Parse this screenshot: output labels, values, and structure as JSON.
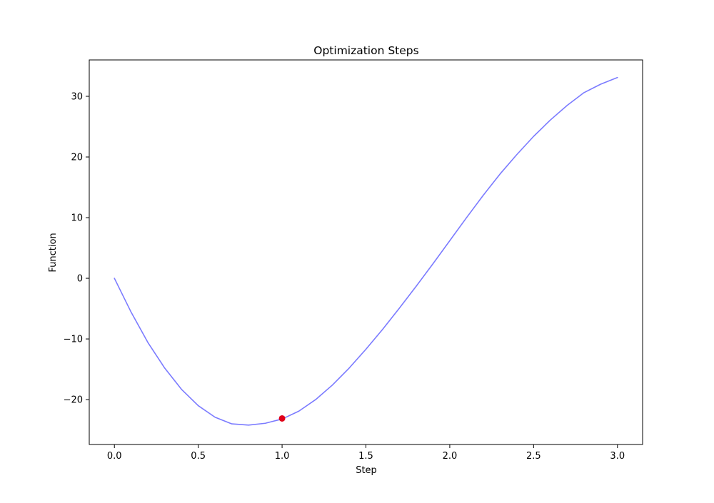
{
  "chart_data": {
    "type": "line",
    "title": "Optimization Steps",
    "xlabel": "Step",
    "ylabel": "Function",
    "xlim": [
      -0.15,
      3.15
    ],
    "ylim": [
      -27.4,
      36.0
    ],
    "xticks": [
      0.0,
      0.5,
      1.0,
      1.5,
      2.0,
      2.5,
      3.0
    ],
    "xtick_labels": [
      "0.0",
      "0.5",
      "1.0",
      "1.5",
      "2.0",
      "2.5",
      "3.0"
    ],
    "yticks": [
      -20,
      -10,
      0,
      10,
      20,
      30
    ],
    "ytick_labels": [
      "−20",
      "−10",
      "0",
      "10",
      "20",
      "30"
    ],
    "grid": false,
    "series": [
      {
        "color": "#7b7bff",
        "x": [
          0.0,
          0.1,
          0.2,
          0.3,
          0.4,
          0.5,
          0.6,
          0.7,
          0.8,
          0.9,
          1.0,
          1.1,
          1.2,
          1.3,
          1.4,
          1.5,
          1.6,
          1.7,
          1.8,
          1.9,
          2.0,
          2.1,
          2.2,
          2.3,
          2.4,
          2.5,
          2.6,
          2.7,
          2.8,
          2.9,
          3.0
        ],
        "y": [
          0.0,
          -5.6,
          -10.6,
          -14.8,
          -18.3,
          -21.0,
          -22.9,
          -24.0,
          -24.2,
          -23.9,
          -23.2,
          -21.9,
          -20.0,
          -17.6,
          -14.8,
          -11.7,
          -8.4,
          -4.9,
          -1.3,
          2.4,
          6.2,
          10.0,
          13.7,
          17.2,
          20.4,
          23.4,
          26.1,
          28.5,
          30.6,
          32.0,
          33.1
        ]
      }
    ],
    "markers": [
      {
        "x": 1.0,
        "y": -23.1,
        "color": "#e0001a"
      }
    ]
  }
}
